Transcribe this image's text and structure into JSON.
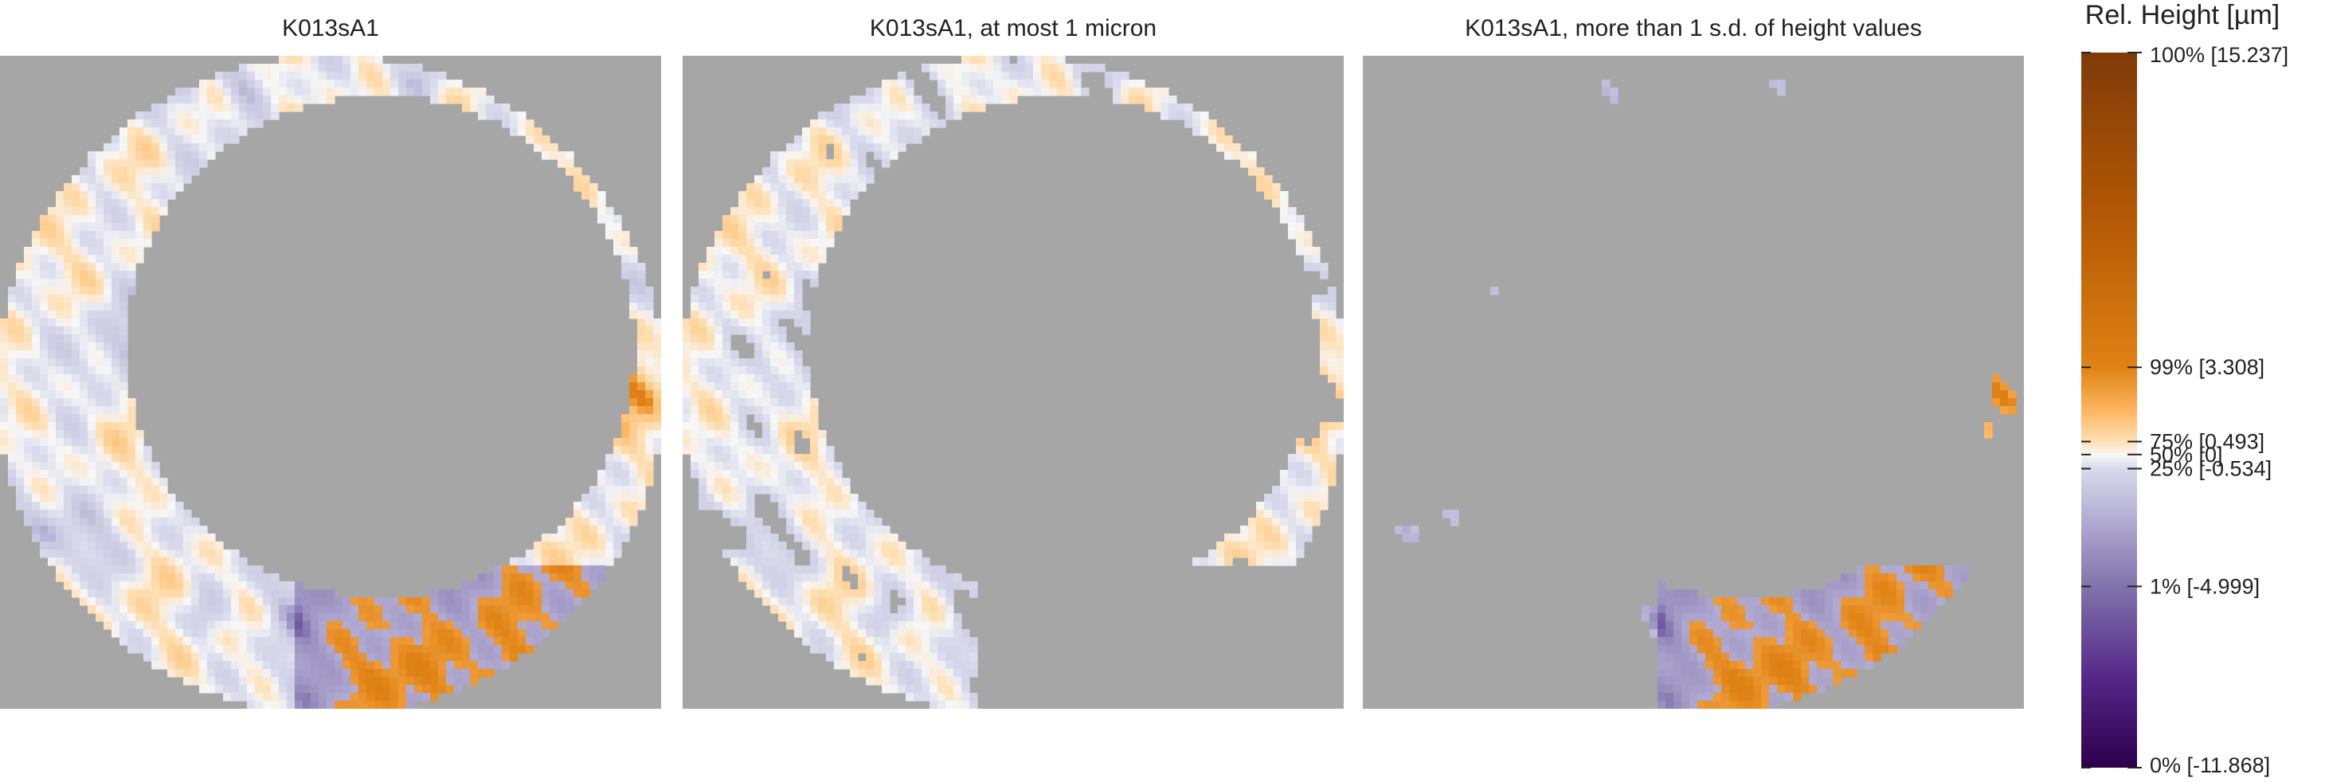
{
  "chart_data": {
    "type": "heatmap",
    "panels": [
      {
        "title": "K013sA1",
        "mode": "all"
      },
      {
        "title": "K013sA1, at most 1 micron",
        "mode": "within"
      },
      {
        "title": "K013sA1, more than 1 s.d. of height values",
        "mode": "outside"
      }
    ],
    "panel_background": "#a6a6a6",
    "colorbar": {
      "title": "Rel. Height [µm]",
      "range": [
        -11.868,
        15.237
      ],
      "ticks": [
        {
          "value": 15.237,
          "label": "100% [15.237]"
        },
        {
          "value": 3.308,
          "label": "99% [3.308]"
        },
        {
          "value": 0.493,
          "label": "75% [0.493]"
        },
        {
          "value": 0,
          "label": "50% [0]"
        },
        {
          "value": -0.534,
          "label": "25% [-0.534]"
        },
        {
          "value": -4.999,
          "label": "1% [-4.999]"
        },
        {
          "value": -11.868,
          "label": "0% [-11.868]"
        }
      ],
      "stops": [
        {
          "value": 15.237,
          "color": "#7f3b08"
        },
        {
          "value": 9.0,
          "color": "#b35806"
        },
        {
          "value": 3.308,
          "color": "#e08214"
        },
        {
          "value": 1.6,
          "color": "#fdb863"
        },
        {
          "value": 0.493,
          "color": "#fee0b6"
        },
        {
          "value": 0,
          "color": "#f7f7f7"
        },
        {
          "value": -0.534,
          "color": "#d8daeb"
        },
        {
          "value": -2.5,
          "color": "#b2abd2"
        },
        {
          "value": -4.999,
          "color": "#8073ac"
        },
        {
          "value": -8.5,
          "color": "#542788"
        },
        {
          "value": -11.868,
          "color": "#2d004b"
        }
      ]
    }
  }
}
